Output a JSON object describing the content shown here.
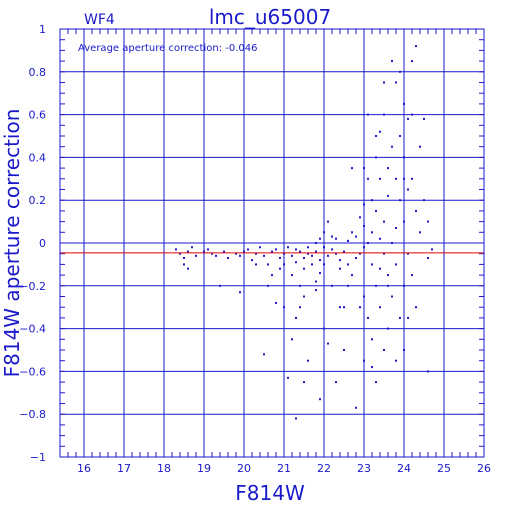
{
  "chart_data": {
    "type": "scatter",
    "panel_label": "WF4",
    "title": "lmc_u65007",
    "annotation": "Average aperture correction:  -0.046",
    "xlabel": "F814W",
    "ylabel": "F814W aperture correction",
    "xlim": [
      15.4,
      26
    ],
    "ylim": [
      -1,
      1
    ],
    "x_ticks": [
      16,
      17,
      18,
      19,
      20,
      21,
      22,
      23,
      24,
      25,
      26
    ],
    "y_ticks": [
      -1,
      -0.8,
      -0.6,
      -0.4,
      -0.2,
      0,
      0.2,
      0.4,
      0.6,
      0.8,
      1
    ],
    "y_tick_labels": [
      "−1",
      "−0.8",
      "−0.6",
      "−0.4",
      "−0.2",
      "0",
      "0.2",
      "0.4",
      "0.6",
      "0.8",
      "1"
    ],
    "grid": true,
    "reference_line": {
      "y": -0.046,
      "color": "#e00000"
    },
    "colors": {
      "axes": "#1a1acc",
      "points": "#1a1acc",
      "background": "#ffffff"
    },
    "points": [
      [
        18.3,
        -0.03
      ],
      [
        18.4,
        -0.05
      ],
      [
        18.5,
        -0.07
      ],
      [
        18.6,
        -0.04
      ],
      [
        18.7,
        -0.02
      ],
      [
        18.5,
        -0.1
      ],
      [
        18.6,
        -0.12
      ],
      [
        18.8,
        -0.06
      ],
      [
        19.0,
        -0.04
      ],
      [
        19.1,
        -0.03
      ],
      [
        19.2,
        -0.05
      ],
      [
        19.3,
        -0.06
      ],
      [
        19.5,
        -0.04
      ],
      [
        19.6,
        -0.07
      ],
      [
        19.8,
        -0.05
      ],
      [
        19.9,
        -0.06
      ],
      [
        20.0,
        -0.04
      ],
      [
        20.1,
        -0.03
      ],
      [
        20.2,
        -0.08
      ],
      [
        19.9,
        -0.23
      ],
      [
        20.3,
        -0.05
      ],
      [
        20.4,
        -0.02
      ],
      [
        20.5,
        -0.06
      ],
      [
        20.6,
        -0.1
      ],
      [
        20.7,
        -0.04
      ],
      [
        20.8,
        -0.03
      ],
      [
        20.9,
        -0.07
      ],
      [
        20.7,
        -0.15
      ],
      [
        20.5,
        -0.52
      ],
      [
        20.6,
        -0.2
      ],
      [
        20.9,
        -0.12
      ],
      [
        20.8,
        -0.28
      ],
      [
        21.0,
        -0.05
      ],
      [
        21.1,
        -0.02
      ],
      [
        21.0,
        -0.1
      ],
      [
        21.2,
        -0.06
      ],
      [
        21.2,
        -0.15
      ],
      [
        21.3,
        -0.03
      ],
      [
        21.3,
        -0.09
      ],
      [
        21.4,
        -0.04
      ],
      [
        21.4,
        -0.2
      ],
      [
        21.5,
        -0.07
      ],
      [
        21.5,
        -0.12
      ],
      [
        21.6,
        -0.02
      ],
      [
        21.6,
        -0.05
      ],
      [
        21.1,
        -0.63
      ],
      [
        21.2,
        -0.45
      ],
      [
        21.3,
        -0.35
      ],
      [
        21.0,
        -0.3
      ],
      [
        21.4,
        -0.3
      ],
      [
        21.6,
        -0.55
      ],
      [
        21.5,
        -0.25
      ],
      [
        21.7,
        -0.06
      ],
      [
        21.7,
        -0.1
      ],
      [
        21.8,
        0.0
      ],
      [
        21.8,
        -0.04
      ],
      [
        21.8,
        -0.18
      ],
      [
        21.9,
        -0.08
      ],
      [
        21.9,
        -0.14
      ],
      [
        22.0,
        0.05
      ],
      [
        22.0,
        -0.02
      ],
      [
        22.0,
        -0.1
      ],
      [
        22.1,
        -0.06
      ],
      [
        22.1,
        0.1
      ],
      [
        22.2,
        -0.03
      ],
      [
        22.2,
        -0.2
      ],
      [
        22.3,
        -0.05
      ],
      [
        22.3,
        0.02
      ],
      [
        22.4,
        -0.08
      ],
      [
        22.4,
        -0.12
      ],
      [
        22.0,
        -0.4
      ],
      [
        21.9,
        -0.73
      ],
      [
        22.5,
        -0.3
      ],
      [
        22.1,
        -0.47
      ],
      [
        22.5,
        -0.04
      ],
      [
        22.6,
        0.01
      ],
      [
        22.6,
        -0.1
      ],
      [
        22.7,
        0.05
      ],
      [
        22.7,
        -0.15
      ],
      [
        22.8,
        0.03
      ],
      [
        22.8,
        -0.07
      ],
      [
        22.9,
        0.12
      ],
      [
        22.9,
        -0.05
      ],
      [
        23.0,
        0.18
      ],
      [
        23.0,
        0.08
      ],
      [
        23.0,
        -0.02
      ],
      [
        23.0,
        -0.25
      ],
      [
        23.1,
        0.3
      ],
      [
        23.1,
        0.0
      ],
      [
        23.1,
        -0.35
      ],
      [
        23.2,
        0.2
      ],
      [
        23.2,
        0.05
      ],
      [
        23.2,
        -0.1
      ],
      [
        23.2,
        -0.45
      ],
      [
        23.3,
        0.4
      ],
      [
        23.3,
        0.15
      ],
      [
        23.3,
        -0.2
      ],
      [
        23.3,
        -0.65
      ],
      [
        23.4,
        0.52
      ],
      [
        23.4,
        0.3
      ],
      [
        23.4,
        0.02
      ],
      [
        23.4,
        -0.3
      ],
      [
        23.5,
        0.6
      ],
      [
        23.5,
        0.1
      ],
      [
        23.5,
        -0.05
      ],
      [
        23.5,
        -0.5
      ],
      [
        23.6,
        0.35
      ],
      [
        23.6,
        0.22
      ],
      [
        23.6,
        -0.15
      ],
      [
        23.6,
        -0.4
      ],
      [
        23.7,
        0.85
      ],
      [
        23.7,
        0.45
      ],
      [
        23.7,
        0.0
      ],
      [
        23.7,
        -0.25
      ],
      [
        23.8,
        0.75
      ],
      [
        23.8,
        0.3
      ],
      [
        23.8,
        -0.1
      ],
      [
        23.8,
        -0.55
      ],
      [
        23.9,
        0.8
      ],
      [
        23.9,
        0.5
      ],
      [
        23.9,
        0.2
      ],
      [
        23.9,
        -0.35
      ],
      [
        24.0,
        0.65
      ],
      [
        24.0,
        0.4
      ],
      [
        24.0,
        0.1
      ],
      [
        24.0,
        -0.2
      ],
      [
        24.0,
        -0.5
      ],
      [
        24.1,
        0.58
      ],
      [
        24.1,
        0.25
      ],
      [
        24.1,
        -0.05
      ],
      [
        24.2,
        0.85
      ],
      [
        24.2,
        0.6
      ],
      [
        24.2,
        0.3
      ],
      [
        24.2,
        -0.15
      ],
      [
        24.3,
        0.92
      ],
      [
        24.3,
        0.15
      ],
      [
        24.3,
        -0.3
      ],
      [
        24.5,
        0.2
      ],
      [
        24.6,
        0.1
      ],
      [
        24.6,
        -0.6
      ],
      [
        22.8,
        -0.77
      ],
      [
        23.0,
        -0.55
      ],
      [
        23.2,
        -0.58
      ],
      [
        22.5,
        -0.5
      ],
      [
        24.4,
        0.05
      ],
      [
        24.7,
        -0.03
      ],
      [
        23.6,
        -0.2
      ],
      [
        23.0,
        0.35
      ],
      [
        22.7,
        0.35
      ],
      [
        23.3,
        0.5
      ],
      [
        21.5,
        -0.65
      ],
      [
        22.3,
        -0.65
      ],
      [
        21.3,
        -0.82
      ],
      [
        20.3,
        -0.1
      ],
      [
        19.4,
        -0.2
      ],
      [
        24.5,
        0.58
      ],
      [
        24.0,
        0.3
      ],
      [
        23.8,
        0.07
      ],
      [
        22.9,
        -0.3
      ],
      [
        22.2,
        0.03
      ],
      [
        21.9,
        0.02
      ],
      [
        21.8,
        -0.22
      ],
      [
        22.6,
        -0.2
      ],
      [
        23.4,
        -0.12
      ],
      [
        24.1,
        -0.35
      ],
      [
        22.4,
        -0.3
      ],
      [
        23.1,
        0.6
      ],
      [
        23.5,
        0.75
      ],
      [
        24.4,
        0.45
      ],
      [
        24.6,
        -0.07
      ]
    ]
  }
}
